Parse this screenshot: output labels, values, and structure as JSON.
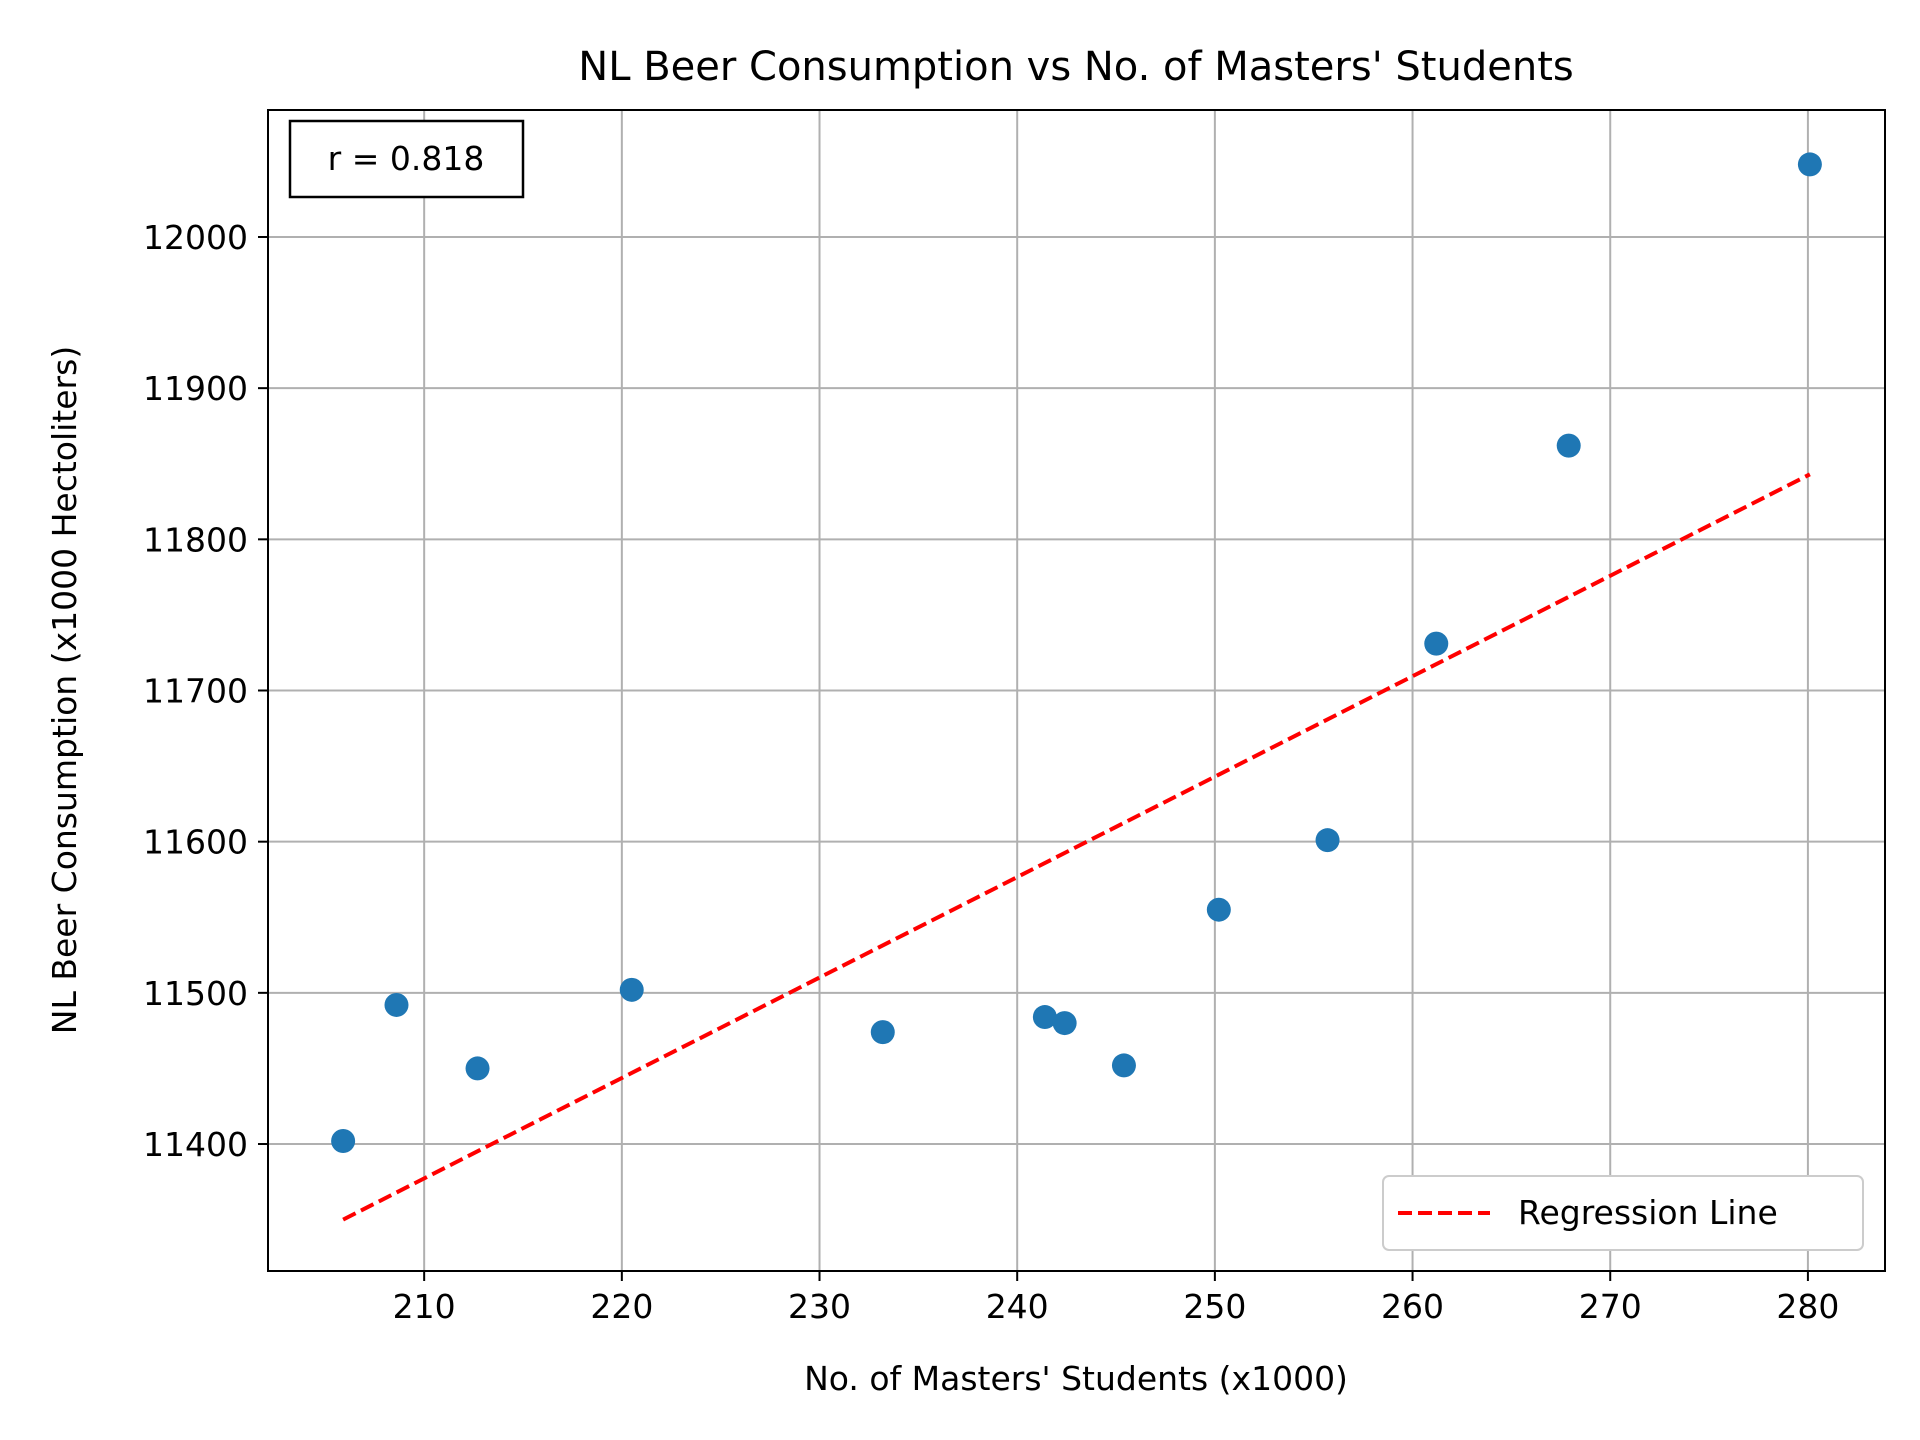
{
  "chart_data": {
    "type": "scatter",
    "title": "NL Beer Consumption vs No. of Masters' Students",
    "xlabel": "No. of Masters' Students (x1000)",
    "ylabel": "NL Beer Consumption (x1000 Hectoliters)",
    "xlim": [
      202.1,
      283.9
    ],
    "ylim": [
      11316,
      12084
    ],
    "xticks": [
      210,
      220,
      230,
      240,
      250,
      260,
      270,
      280
    ],
    "yticks": [
      11400,
      11500,
      11600,
      11700,
      11800,
      11900,
      12000
    ],
    "grid": true,
    "legend_position": "lower-right",
    "annotation": "r = 0.818",
    "colors": {
      "points": "#1f77b4",
      "regression": "#ff0000",
      "grid": "#b0b0b0"
    },
    "series": [
      {
        "kind": "scatter",
        "x": [
          205.9,
          208.6,
          212.7,
          220.5,
          233.2,
          241.4,
          242.4,
          245.4,
          250.2,
          255.7,
          261.2,
          267.9,
          280.1
        ],
        "y": [
          11402,
          11492,
          11450,
          11502,
          11474,
          11484,
          11480,
          11452,
          11555,
          11601,
          11731,
          11862,
          12048
        ]
      },
      {
        "name": "Regression Line",
        "kind": "line",
        "style": "dashed",
        "x": [
          205.9,
          280.1
        ],
        "y": [
          11350,
          11843
        ]
      }
    ]
  }
}
